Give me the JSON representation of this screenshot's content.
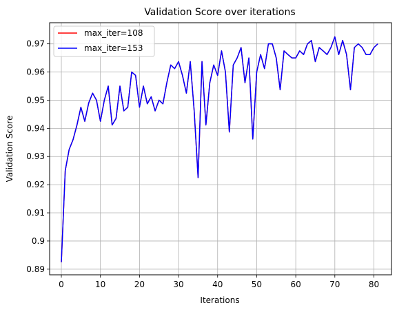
{
  "chart_data": {
    "type": "line",
    "title": "Validation Score over iterations",
    "xlabel": "Iterations",
    "ylabel": "Validation Score",
    "xlim": [
      -3,
      84.5
    ],
    "ylim": [
      0.888,
      0.9775
    ],
    "xticks": [
      0,
      10,
      20,
      30,
      40,
      50,
      60,
      70,
      80
    ],
    "xtick_labels": [
      "0",
      "10",
      "20",
      "30",
      "40",
      "50",
      "60",
      "70",
      "80"
    ],
    "yticks": [
      0.89,
      0.9,
      0.91,
      0.92,
      0.93,
      0.94,
      0.95,
      0.96,
      0.97
    ],
    "ytick_labels": [
      "0.89",
      "0.9",
      "0.91",
      "0.92",
      "0.93",
      "0.94",
      "0.95",
      "0.96",
      "0.97"
    ],
    "grid": true,
    "legend_position": "top-left",
    "series": [
      {
        "name": "max_iter=108",
        "color": "#ff0000",
        "x": [
          0,
          1,
          2,
          3,
          4,
          5,
          6,
          7,
          8,
          9,
          10,
          11,
          12,
          13,
          14,
          15,
          16,
          17,
          18,
          19,
          20,
          21,
          22,
          23,
          24,
          25,
          26,
          27,
          28,
          29,
          30,
          31,
          32,
          33,
          34,
          35,
          36,
          37,
          38,
          39,
          40,
          41,
          42,
          43,
          44,
          45,
          46,
          47,
          48,
          49,
          50,
          51,
          52,
          53,
          54,
          55,
          56,
          57,
          58,
          59,
          60,
          61,
          62,
          63,
          64,
          65,
          66,
          67,
          68,
          69,
          70,
          71,
          72,
          73,
          74,
          75,
          76,
          77,
          78,
          79,
          80,
          81
        ],
        "y": [
          0.8925,
          0.925,
          0.9325,
          0.936,
          0.9412,
          0.9475,
          0.9425,
          0.949,
          0.9525,
          0.95,
          0.9425,
          0.95,
          0.955,
          0.9412,
          0.9435,
          0.955,
          0.9462,
          0.9475,
          0.96,
          0.9588,
          0.9475,
          0.955,
          0.9487,
          0.9512,
          0.9462,
          0.95,
          0.9487,
          0.9562,
          0.9625,
          0.9612,
          0.9637,
          0.9588,
          0.9525,
          0.9637,
          0.9462,
          0.9225,
          0.9637,
          0.9412,
          0.9562,
          0.9625,
          0.9588,
          0.9675,
          0.96,
          0.9387,
          0.9625,
          0.965,
          0.9687,
          0.9562,
          0.965,
          0.9362,
          0.96,
          0.9662,
          0.9612,
          0.97,
          0.97,
          0.965,
          0.9537,
          0.9675,
          0.9662,
          0.965,
          0.965,
          0.9675,
          0.9662,
          0.97,
          0.9712,
          0.9637,
          0.9687,
          0.9675,
          0.9662,
          0.9687,
          0.9725,
          0.9662,
          0.9712,
          0.9662,
          0.9537,
          0.9687,
          0.97,
          0.9687,
          0.9662,
          0.9662,
          0.9687,
          0.97
        ]
      },
      {
        "name": "max_iter=153",
        "color": "#0000ff",
        "x": [
          0,
          1,
          2,
          3,
          4,
          5,
          6,
          7,
          8,
          9,
          10,
          11,
          12,
          13,
          14,
          15,
          16,
          17,
          18,
          19,
          20,
          21,
          22,
          23,
          24,
          25,
          26,
          27,
          28,
          29,
          30,
          31,
          32,
          33,
          34,
          35,
          36,
          37,
          38,
          39,
          40,
          41,
          42,
          43,
          44,
          45,
          46,
          47,
          48,
          49,
          50,
          51,
          52,
          53,
          54,
          55,
          56,
          57,
          58,
          59,
          60,
          61,
          62,
          63,
          64,
          65,
          66,
          67,
          68,
          69,
          70,
          71,
          72,
          73,
          74,
          75,
          76,
          77,
          78,
          79,
          80,
          81
        ],
        "y": [
          0.8925,
          0.925,
          0.9325,
          0.936,
          0.9412,
          0.9475,
          0.9425,
          0.949,
          0.9525,
          0.95,
          0.9425,
          0.95,
          0.955,
          0.9412,
          0.9435,
          0.955,
          0.9462,
          0.9475,
          0.96,
          0.9588,
          0.9475,
          0.955,
          0.9487,
          0.9512,
          0.9462,
          0.95,
          0.9487,
          0.9562,
          0.9625,
          0.9612,
          0.9637,
          0.9588,
          0.9525,
          0.9637,
          0.9462,
          0.9225,
          0.9637,
          0.9412,
          0.9562,
          0.9625,
          0.9588,
          0.9675,
          0.96,
          0.9387,
          0.9625,
          0.965,
          0.9687,
          0.9562,
          0.965,
          0.9362,
          0.96,
          0.9662,
          0.9612,
          0.97,
          0.97,
          0.965,
          0.9537,
          0.9675,
          0.9662,
          0.965,
          0.965,
          0.9675,
          0.9662,
          0.97,
          0.9712,
          0.9637,
          0.9687,
          0.9675,
          0.9662,
          0.9687,
          0.9725,
          0.9662,
          0.9712,
          0.9662,
          0.9537,
          0.9687,
          0.97,
          0.9687,
          0.9662,
          0.9662,
          0.9687,
          0.97
        ]
      }
    ]
  }
}
